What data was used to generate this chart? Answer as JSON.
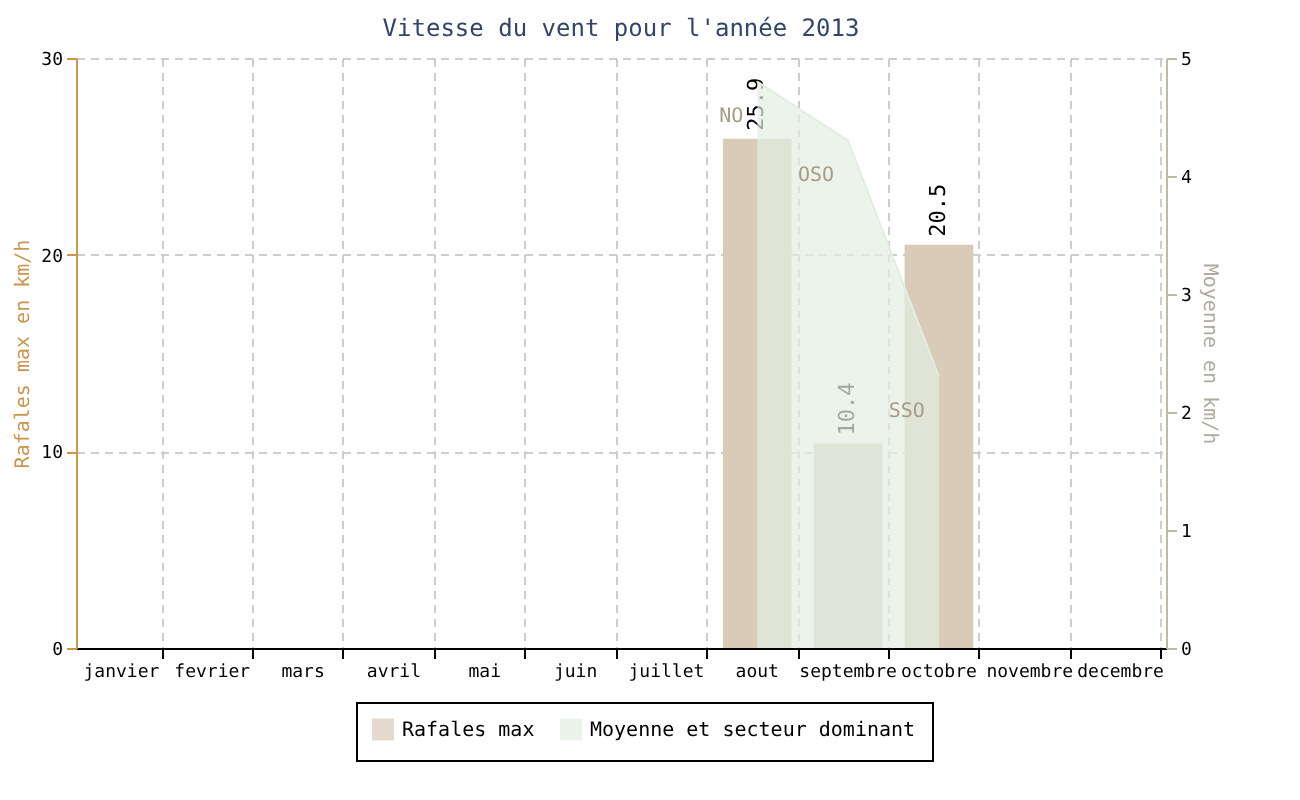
{
  "chart_data": {
    "type": "bar",
    "title": "Vitesse du vent pour l'année 2013",
    "categories": [
      "janvier",
      "fevrier",
      "mars",
      "avril",
      "mai",
      "juin",
      "juillet",
      "aout",
      "septembre",
      "octobre",
      "novembre",
      "decembre"
    ],
    "series": [
      {
        "name": "Rafales max",
        "type": "bar",
        "color": "#d8cbb8",
        "values": [
          null,
          null,
          null,
          null,
          null,
          null,
          null,
          25.9,
          10.4,
          20.5,
          null,
          null
        ],
        "value_labels": [
          null,
          null,
          null,
          null,
          null,
          null,
          null,
          "25.9",
          "10.4",
          "20.5",
          null,
          null
        ]
      },
      {
        "name": "Moyenne et secteur dominant",
        "type": "area",
        "axis": "y2",
        "color": "#e2eee2",
        "values": [
          null,
          null,
          null,
          null,
          null,
          null,
          null,
          4.8,
          4.3,
          2.3,
          null,
          null
        ]
      }
    ],
    "ylabel": "Rafales max en km/h",
    "y2label": "Moyenne en km/h",
    "ylim": [
      0,
      30
    ],
    "yticks": [
      0,
      10,
      20,
      30
    ],
    "y2lim": [
      0,
      5
    ],
    "y2ticks": [
      0,
      1,
      2,
      3,
      4,
      5
    ],
    "annotations": [
      "NO",
      "OSO",
      "SSO"
    ],
    "grid": true,
    "legend": "bottom"
  }
}
